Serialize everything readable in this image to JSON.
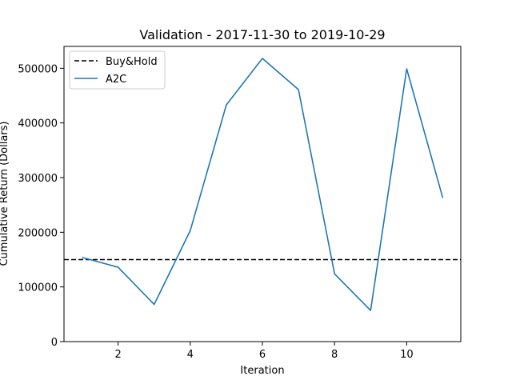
{
  "chart_data": {
    "type": "line",
    "title": "Validation - 2017-11-30 to 2019-10-29",
    "xlabel": "Iteration",
    "ylabel": "Cumulative Return (Dollars)",
    "xlim": [
      0.5,
      11.5
    ],
    "ylim": [
      0,
      540000
    ],
    "x_ticks": [
      2,
      4,
      6,
      8,
      10
    ],
    "x_tick_labels": [
      "2",
      "4",
      "6",
      "8",
      "10"
    ],
    "y_ticks": [
      0,
      100000,
      200000,
      300000,
      400000,
      500000
    ],
    "y_tick_labels": [
      "0",
      "100000",
      "200000",
      "300000",
      "400000",
      "500000"
    ],
    "grid": false,
    "legend_position": "top-left",
    "series": [
      {
        "name": "Buy&Hold",
        "style": "dashed",
        "color": "#000000",
        "x": [
          0.5,
          11.5
        ],
        "values": [
          150000,
          150000
        ]
      },
      {
        "name": "A2C",
        "style": "solid",
        "color": "#1f77b4",
        "x": [
          1,
          2,
          3,
          4,
          5,
          6,
          7,
          8,
          9,
          10,
          11
        ],
        "values": [
          154000,
          136000,
          68000,
          203000,
          433000,
          518000,
          461000,
          124000,
          57000,
          499000,
          263000
        ]
      }
    ]
  }
}
